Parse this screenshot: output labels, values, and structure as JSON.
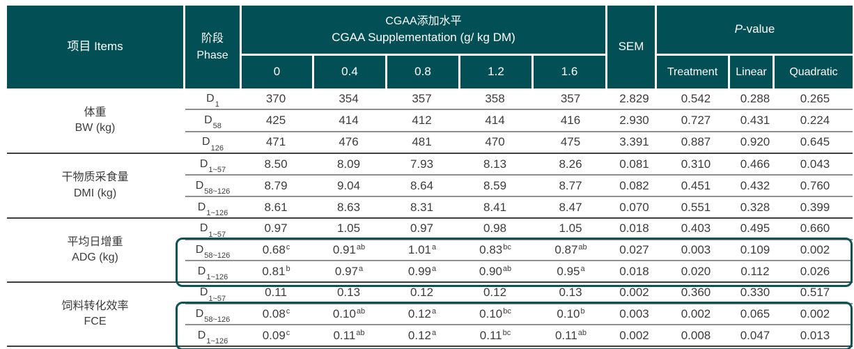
{
  "colors": {
    "header_bg": "#024F55",
    "highlight_border": "#0A5457",
    "body_text": "#3C3C3C",
    "row_separator": "#8F8F8F",
    "section_divider": "#3F3F3F"
  },
  "header": {
    "items_label": "项目 Items",
    "phase_zh": "阶段",
    "phase_en": "Phase",
    "cgaa_group_zh": "CGAA添加水平",
    "cgaa_group_en": "CGAA Supplementation (g/ kg DM)",
    "dose_columns": [
      "0",
      "0.4",
      "0.8",
      "1.2",
      "1.6"
    ],
    "sem_label": "SEM",
    "pvalue_italic": "P",
    "pvalue_rest": "-value",
    "pvalue_columns": [
      "Treatment",
      "Linear",
      "Quadratic"
    ]
  },
  "sections": [
    {
      "label_zh": "体重",
      "label_en": "BW (kg)",
      "rows": [
        {
          "phase": "D",
          "phase_sub": "1",
          "values": [
            "370",
            "354",
            "357",
            "358",
            "357"
          ],
          "sem": "2.829",
          "pvalues": [
            "0.542",
            "0.288",
            "0.265"
          ],
          "highlighted": false
        },
        {
          "phase": "D",
          "phase_sub": "58",
          "values": [
            "425",
            "414",
            "412",
            "414",
            "416"
          ],
          "sem": "2.930",
          "pvalues": [
            "0.727",
            "0.431",
            "0.224"
          ],
          "highlighted": false
        },
        {
          "phase": "D",
          "phase_sub": "126",
          "values": [
            "471",
            "476",
            "481",
            "470",
            "475"
          ],
          "sem": "3.391",
          "pvalues": [
            "0.887",
            "0.920",
            "0.645"
          ],
          "highlighted": false
        }
      ]
    },
    {
      "label_zh": "干物质采食量",
      "label_en": "DMI (kg)",
      "rows": [
        {
          "phase": "D",
          "phase_sub": "1~57",
          "values": [
            "8.50",
            "8.09",
            "7.93",
            "8.13",
            "8.26"
          ],
          "sem": "0.081",
          "pvalues": [
            "0.310",
            "0.466",
            "0.043"
          ],
          "highlighted": false
        },
        {
          "phase": "D",
          "phase_sub": "58~126",
          "values": [
            "8.79",
            "9.04",
            "8.64",
            "8.59",
            "8.77"
          ],
          "sem": "0.082",
          "pvalues": [
            "0.451",
            "0.432",
            "0.760"
          ],
          "highlighted": false
        },
        {
          "phase": "D",
          "phase_sub": "1~126",
          "values": [
            "8.61",
            "8.63",
            "8.31",
            "8.41",
            "8.47"
          ],
          "sem": "0.070",
          "pvalues": [
            "0.551",
            "0.328",
            "0.399"
          ],
          "highlighted": false
        }
      ]
    },
    {
      "label_zh": "平均日增重",
      "label_en": "ADG (kg)",
      "rows": [
        {
          "phase": "D",
          "phase_sub": "1~57",
          "values": [
            "0.97",
            "1.05",
            "0.97",
            "0.98",
            "1.05"
          ],
          "sem": "0.018",
          "pvalues": [
            "0.403",
            "0.495",
            "0.660"
          ],
          "highlighted": false
        },
        {
          "phase": "D",
          "phase_sub": "58~126",
          "values": [
            "0.68^c",
            "0.91^ab",
            "1.01^a",
            "0.83^bc",
            "0.87^ab"
          ],
          "sem": "0.027",
          "pvalues": [
            "0.003",
            "0.109",
            "0.002"
          ],
          "highlighted": true
        },
        {
          "phase": "D",
          "phase_sub": "1~126",
          "values": [
            "0.81^b",
            "0.97^a",
            "0.99^a",
            "0.90^ab",
            "0.95^a"
          ],
          "sem": "0.018",
          "pvalues": [
            "0.020",
            "0.112",
            "0.026"
          ],
          "highlighted": true
        }
      ]
    },
    {
      "label_zh": "饲料转化效率",
      "label_en": "FCE",
      "rows": [
        {
          "phase": "D",
          "phase_sub": "1~57",
          "values": [
            "0.11",
            "0.13",
            "0.12",
            "0.12",
            "0.13"
          ],
          "sem": "0.002",
          "pvalues": [
            "0.360",
            "0.330",
            "0.517"
          ],
          "highlighted": false
        },
        {
          "phase": "D",
          "phase_sub": "58~126",
          "values": [
            "0.08^c",
            "0.10^ab",
            "0.12^a",
            "0.10^bc",
            "0.10^b"
          ],
          "sem": "0.003",
          "pvalues": [
            "0.002",
            "0.065",
            "0.002"
          ],
          "highlighted": true
        },
        {
          "phase": "D",
          "phase_sub": "1~126",
          "values": [
            "0.09^c",
            "0.11^ab",
            "0.12^a",
            "0.11^bc",
            "0.11^ab"
          ],
          "sem": "0.002",
          "pvalues": [
            "0.008",
            "0.047",
            "0.013"
          ],
          "highlighted": true
        }
      ]
    }
  ]
}
